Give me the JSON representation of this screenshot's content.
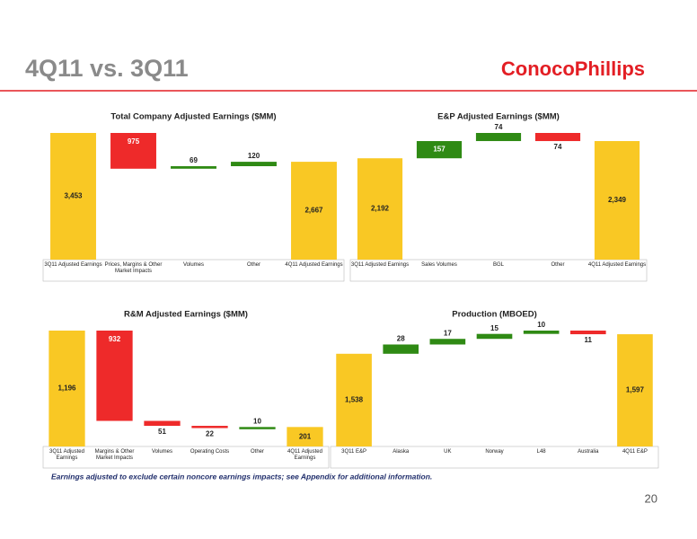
{
  "title": "4Q11 vs. 3Q11",
  "logo": "ConocoPhillips",
  "footnote": "Earnings adjusted to exclude certain noncore earnings impacts; see Appendix for additional information.",
  "page_number": "20",
  "chart_data": [
    {
      "type": "waterfall",
      "title": "Total Company Adjusted Earnings ($MM)",
      "categories": [
        "3Q11 Adjusted Earnings",
        "Prices, Margins & Other Market Impacts",
        "Volumes",
        "Other",
        "4Q11 Adjusted Earnings"
      ],
      "values": [
        3453,
        -975,
        69,
        120,
        2667
      ],
      "value_labels": [
        "3,453",
        "975",
        "69",
        "120",
        "2,667"
      ],
      "color": "#f9c824",
      "increase_color": "#2f8a14",
      "decrease_color": "#ee2a2a"
    },
    {
      "type": "waterfall",
      "title": "E&P Adjusted Earnings ($MM)",
      "categories": [
        "3Q11 Adjusted Earnings",
        "Sales Volumes",
        "BGL",
        "Other",
        "4Q11 Adjusted Earnings"
      ],
      "values": [
        2192,
        157,
        74,
        -74,
        2349
      ],
      "value_labels": [
        "2,192",
        "157",
        "74",
        "74",
        "2,349"
      ],
      "color": "#f9c824",
      "increase_color": "#2f8a14",
      "decrease_color": "#ee2a2a"
    },
    {
      "type": "waterfall",
      "title": "R&M Adjusted Earnings ($MM)",
      "categories": [
        "3Q11 Adjusted Earnings",
        "Margins & Other Market Impacts",
        "Volumes",
        "Operating Costs",
        "Other",
        "4Q11 Adjusted Earnings"
      ],
      "values": [
        1196,
        -932,
        -51,
        -22,
        10,
        201
      ],
      "value_labels": [
        "1,196",
        "932",
        "51",
        "22",
        "10",
        "201"
      ],
      "color": "#f9c824",
      "increase_color": "#2f8a14",
      "decrease_color": "#ee2a2a"
    },
    {
      "type": "waterfall",
      "title": "Production (MBOED)",
      "categories": [
        "3Q11 E&P",
        "Alaska",
        "UK",
        "Norway",
        "L48",
        "Australia",
        "4Q11 E&P"
      ],
      "values": [
        1538,
        28,
        17,
        15,
        10,
        -11,
        1597
      ],
      "value_labels": [
        "1,538",
        "28",
        "17",
        "15",
        "10",
        "11",
        "1,597"
      ],
      "color": "#f9c824",
      "increase_color": "#2f8a14",
      "decrease_color": "#ee2a2a"
    }
  ]
}
